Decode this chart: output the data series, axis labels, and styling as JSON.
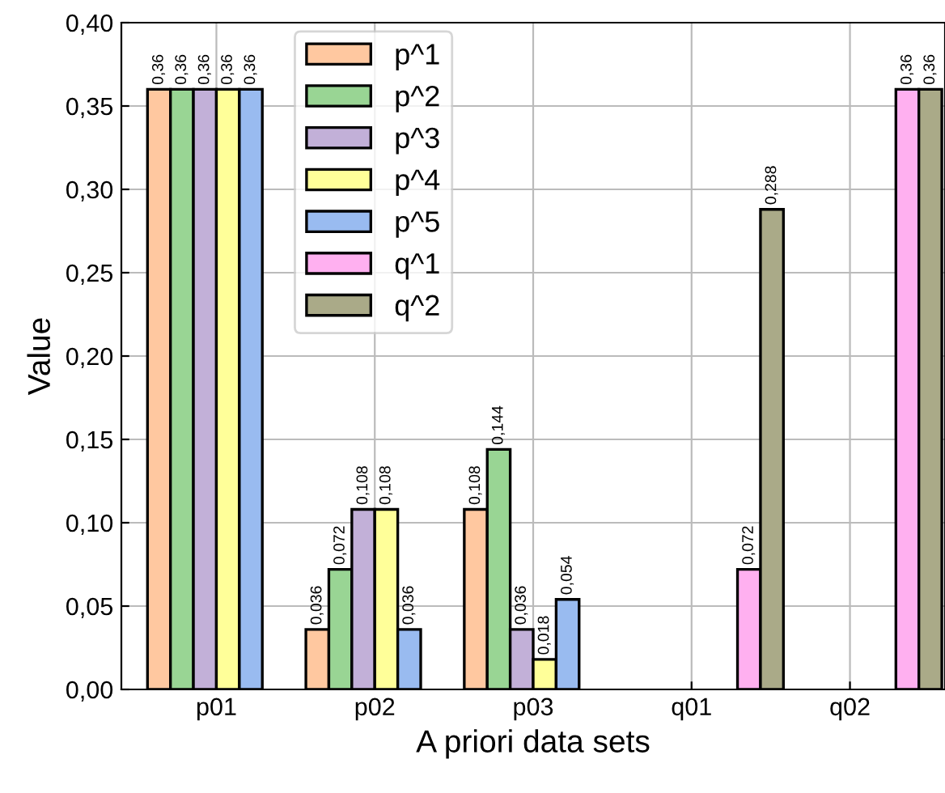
{
  "chart_data": {
    "type": "bar",
    "xlabel": "A priori data sets",
    "ylabel": "Value",
    "categories": [
      "p01",
      "p02",
      "p03",
      "q01",
      "q02"
    ],
    "series": [
      {
        "name": "p^1",
        "color": "#ffc8a0",
        "values": [
          0.36,
          0.036,
          0.108,
          null,
          null
        ],
        "value_labels": [
          "0,36",
          "0,036",
          "0,108",
          null,
          null
        ]
      },
      {
        "name": "p^2",
        "color": "#99d594",
        "values": [
          0.36,
          0.072,
          0.144,
          null,
          null
        ],
        "value_labels": [
          "0,36",
          "0,072",
          "0,144",
          null,
          null
        ]
      },
      {
        "name": "p^3",
        "color": "#c2b0d8",
        "values": [
          0.36,
          0.108,
          0.036,
          null,
          null
        ],
        "value_labels": [
          "0,36",
          "0,108",
          "0,036",
          null,
          null
        ]
      },
      {
        "name": "p^4",
        "color": "#ffff99",
        "values": [
          0.36,
          0.108,
          0.018,
          null,
          null
        ],
        "value_labels": [
          "0,36",
          "0,108",
          "0,018",
          null,
          null
        ]
      },
      {
        "name": "p^5",
        "color": "#99bbf0",
        "values": [
          0.36,
          0.036,
          0.054,
          null,
          null
        ],
        "value_labels": [
          "0,36",
          "0,036",
          "0,054",
          null,
          null
        ]
      },
      {
        "name": "q^1",
        "color": "#ffb0f0",
        "values": [
          null,
          null,
          null,
          0.072,
          0.36
        ],
        "value_labels": [
          null,
          null,
          null,
          "0,072",
          "0,36"
        ]
      },
      {
        "name": "q^2",
        "color": "#aaaa88",
        "values": [
          null,
          null,
          null,
          0.288,
          0.36
        ],
        "value_labels": [
          null,
          null,
          null,
          "0,288",
          "0,36"
        ]
      }
    ],
    "ylim": [
      0,
      0.4
    ],
    "yticks": [
      {
        "value": 0,
        "label": "0,00"
      },
      {
        "value": 0.05,
        "label": "0,05"
      },
      {
        "value": 0.1,
        "label": "0,10"
      },
      {
        "value": 0.15,
        "label": "0,15"
      },
      {
        "value": 0.2,
        "label": "0,20"
      },
      {
        "value": 0.25,
        "label": "0,25"
      },
      {
        "value": 0.3,
        "label": "0,30"
      },
      {
        "value": 0.35,
        "label": "0,35"
      },
      {
        "value": 0.4,
        "label": "0,40"
      }
    ],
    "grid": true,
    "legend": "top left"
  }
}
